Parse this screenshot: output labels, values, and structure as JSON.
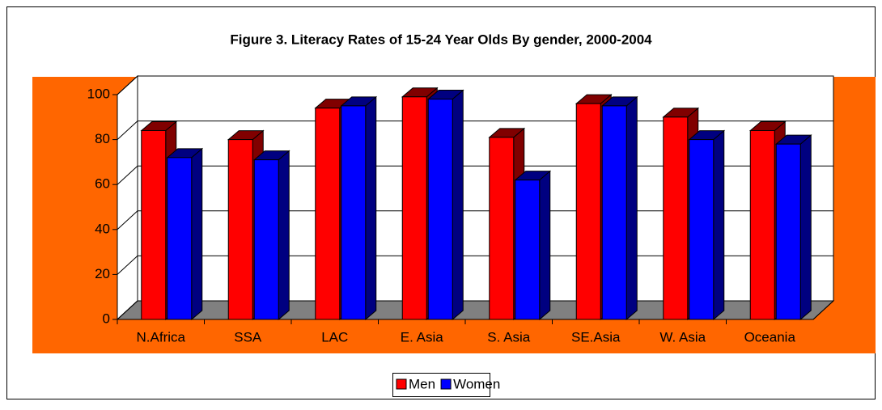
{
  "chart_data": {
    "type": "bar3d",
    "title": "Figure 3. Literacy Rates of 15-24 Year Olds By gender, 2000-2004",
    "categories": [
      "N.Africa",
      "SSA",
      "LAC",
      "E. Asia",
      "S. Asia",
      "SE.Asia",
      "W. Asia",
      "Oceania"
    ],
    "series": [
      {
        "name": "Men",
        "color": "#ff0000",
        "values": [
          84,
          80,
          94,
          99,
          81,
          96,
          90,
          84
        ]
      },
      {
        "name": "Women",
        "color": "#0000ff",
        "values": [
          72,
          71,
          95,
          98,
          62,
          95,
          80,
          78
        ]
      }
    ],
    "ylim": [
      0,
      100
    ],
    "yticks": [
      0,
      20,
      40,
      60,
      80,
      100
    ],
    "grid": true,
    "legend": "bottom",
    "plot_background": "#ff6600",
    "floor_color": "#808080"
  }
}
